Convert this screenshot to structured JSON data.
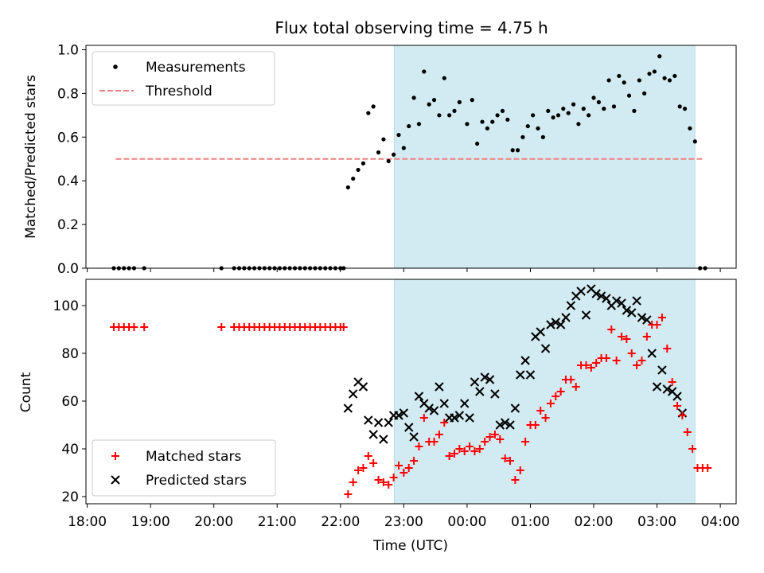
{
  "chart_data": {
    "type": "scatter",
    "title": "Flux total observing time = 4.75 h",
    "xlabel": "Time (UTC)",
    "x_tick_labels": [
      "18:00",
      "19:00",
      "20:00",
      "21:00",
      "22:00",
      "23:00",
      "00:00",
      "01:00",
      "02:00",
      "03:00",
      "04:00"
    ],
    "x_tick_hours": [
      18,
      19,
      20,
      21,
      22,
      23,
      24,
      25,
      26,
      27,
      28
    ],
    "xlim_hours": [
      17.98,
      28.25
    ],
    "shaded_interval_hours": [
      22.85,
      27.6
    ],
    "shade_color": "#add8e6",
    "top": {
      "ylabel": "Matched/Predicted stars",
      "ylim": [
        0,
        1.02
      ],
      "yticks": [
        0.0,
        0.2,
        0.4,
        0.6,
        0.8,
        1.0
      ],
      "y_tick_labels": [
        "0.0",
        "0.2",
        "0.4",
        "0.6",
        "0.8",
        "1.0"
      ],
      "threshold": {
        "name": "Threshold",
        "value": 0.5,
        "x_range_hours": [
          18.45,
          27.72
        ],
        "color": "#f08080"
      },
      "measurements": {
        "name": "Measurements",
        "color": "#000000",
        "points": [
          [
            18.42,
            0
          ],
          [
            18.5,
            0
          ],
          [
            18.58,
            0
          ],
          [
            18.66,
            0
          ],
          [
            18.74,
            0
          ],
          [
            18.9,
            0
          ],
          [
            20.12,
            0
          ],
          [
            20.32,
            0
          ],
          [
            20.4,
            0
          ],
          [
            20.48,
            0
          ],
          [
            20.56,
            0
          ],
          [
            20.64,
            0
          ],
          [
            20.72,
            0
          ],
          [
            20.8,
            0
          ],
          [
            20.88,
            0
          ],
          [
            20.96,
            0
          ],
          [
            21.04,
            0
          ],
          [
            21.12,
            0
          ],
          [
            21.2,
            0
          ],
          [
            21.28,
            0
          ],
          [
            21.36,
            0
          ],
          [
            21.44,
            0
          ],
          [
            21.52,
            0
          ],
          [
            21.6,
            0
          ],
          [
            21.68,
            0
          ],
          [
            21.76,
            0
          ],
          [
            21.84,
            0
          ],
          [
            21.92,
            0
          ],
          [
            22.0,
            0
          ],
          [
            22.05,
            0
          ],
          [
            22.12,
            0.37
          ],
          [
            22.2,
            0.41
          ],
          [
            22.28,
            0.45
          ],
          [
            22.36,
            0.48
          ],
          [
            22.44,
            0.71
          ],
          [
            22.52,
            0.74
          ],
          [
            22.6,
            0.53
          ],
          [
            22.68,
            0.59
          ],
          [
            22.76,
            0.49
          ],
          [
            22.84,
            0.52
          ],
          [
            22.92,
            0.61
          ],
          [
            23.0,
            0.55
          ],
          [
            23.08,
            0.65
          ],
          [
            23.16,
            0.78
          ],
          [
            23.24,
            0.66
          ],
          [
            23.32,
            0.9
          ],
          [
            23.4,
            0.75
          ],
          [
            23.48,
            0.77
          ],
          [
            23.56,
            0.7
          ],
          [
            23.64,
            0.87
          ],
          [
            23.72,
            0.7
          ],
          [
            23.8,
            0.72
          ],
          [
            23.88,
            0.76
          ],
          [
            24.0,
            0.66
          ],
          [
            24.08,
            0.77
          ],
          [
            24.16,
            0.57
          ],
          [
            24.24,
            0.67
          ],
          [
            24.32,
            0.64
          ],
          [
            24.4,
            0.67
          ],
          [
            24.48,
            0.7
          ],
          [
            24.56,
            0.72
          ],
          [
            24.64,
            0.68
          ],
          [
            24.72,
            0.54
          ],
          [
            24.8,
            0.54
          ],
          [
            24.88,
            0.6
          ],
          [
            24.96,
            0.65
          ],
          [
            25.04,
            0.7
          ],
          [
            25.12,
            0.64
          ],
          [
            25.2,
            0.6
          ],
          [
            25.28,
            0.72
          ],
          [
            25.36,
            0.69
          ],
          [
            25.44,
            0.7
          ],
          [
            25.52,
            0.73
          ],
          [
            25.6,
            0.71
          ],
          [
            25.68,
            0.75
          ],
          [
            25.76,
            0.66
          ],
          [
            25.84,
            0.73
          ],
          [
            25.92,
            0.7
          ],
          [
            26.0,
            0.78
          ],
          [
            26.08,
            0.76
          ],
          [
            26.16,
            0.73
          ],
          [
            26.24,
            0.86
          ],
          [
            26.32,
            0.74
          ],
          [
            26.4,
            0.88
          ],
          [
            26.48,
            0.85
          ],
          [
            26.56,
            0.79
          ],
          [
            26.64,
            0.72
          ],
          [
            26.72,
            0.86
          ],
          [
            26.8,
            0.8
          ],
          [
            26.88,
            0.89
          ],
          [
            26.96,
            0.9
          ],
          [
            27.04,
            0.97
          ],
          [
            27.12,
            0.87
          ],
          [
            27.2,
            0.86
          ],
          [
            27.28,
            0.88
          ],
          [
            27.36,
            0.74
          ],
          [
            27.44,
            0.73
          ],
          [
            27.52,
            0.64
          ],
          [
            27.6,
            0.58
          ],
          [
            27.68,
            0
          ],
          [
            27.76,
            0
          ]
        ]
      }
    },
    "bottom": {
      "ylabel": "Count",
      "ylim": [
        17,
        111
      ],
      "yticks": [
        20,
        40,
        60,
        80,
        100
      ],
      "y_tick_labels": [
        "20",
        "40",
        "60",
        "80",
        "100"
      ],
      "matched": {
        "name": "Matched stars",
        "color": "#ff0000",
        "points": [
          [
            18.42,
            91
          ],
          [
            18.5,
            91
          ],
          [
            18.58,
            91
          ],
          [
            18.66,
            91
          ],
          [
            18.74,
            91
          ],
          [
            18.9,
            91
          ],
          [
            20.12,
            91
          ],
          [
            20.32,
            91
          ],
          [
            20.4,
            91
          ],
          [
            20.48,
            91
          ],
          [
            20.56,
            91
          ],
          [
            20.64,
            91
          ],
          [
            20.72,
            91
          ],
          [
            20.8,
            91
          ],
          [
            20.88,
            91
          ],
          [
            20.96,
            91
          ],
          [
            21.04,
            91
          ],
          [
            21.12,
            91
          ],
          [
            21.2,
            91
          ],
          [
            21.28,
            91
          ],
          [
            21.36,
            91
          ],
          [
            21.44,
            91
          ],
          [
            21.52,
            91
          ],
          [
            21.6,
            91
          ],
          [
            21.68,
            91
          ],
          [
            21.76,
            91
          ],
          [
            21.84,
            91
          ],
          [
            21.92,
            91
          ],
          [
            22.0,
            91
          ],
          [
            22.05,
            91
          ],
          [
            22.12,
            21
          ],
          [
            22.2,
            26
          ],
          [
            22.28,
            31
          ],
          [
            22.36,
            32
          ],
          [
            22.44,
            37
          ],
          [
            22.52,
            34
          ],
          [
            22.6,
            27
          ],
          [
            22.68,
            26
          ],
          [
            22.76,
            25
          ],
          [
            22.84,
            28
          ],
          [
            22.92,
            33
          ],
          [
            23.0,
            30
          ],
          [
            23.08,
            32
          ],
          [
            23.16,
            35
          ],
          [
            23.24,
            41
          ],
          [
            23.32,
            53
          ],
          [
            23.4,
            43
          ],
          [
            23.48,
            43
          ],
          [
            23.56,
            46
          ],
          [
            23.64,
            51
          ],
          [
            23.72,
            37
          ],
          [
            23.8,
            38
          ],
          [
            23.88,
            40
          ],
          [
            23.96,
            39
          ],
          [
            24.04,
            41
          ],
          [
            24.12,
            39
          ],
          [
            24.2,
            40
          ],
          [
            24.28,
            43
          ],
          [
            24.36,
            45
          ],
          [
            24.44,
            46
          ],
          [
            24.52,
            44
          ],
          [
            24.6,
            36
          ],
          [
            24.68,
            35
          ],
          [
            24.76,
            27
          ],
          [
            24.84,
            31
          ],
          [
            24.92,
            43
          ],
          [
            25.0,
            50
          ],
          [
            25.08,
            50
          ],
          [
            25.16,
            56
          ],
          [
            25.24,
            53
          ],
          [
            25.32,
            59
          ],
          [
            25.4,
            62
          ],
          [
            25.48,
            64
          ],
          [
            25.56,
            69
          ],
          [
            25.64,
            69
          ],
          [
            25.72,
            66
          ],
          [
            25.8,
            75
          ],
          [
            25.88,
            75
          ],
          [
            25.96,
            74
          ],
          [
            26.04,
            76
          ],
          [
            26.12,
            78
          ],
          [
            26.2,
            78
          ],
          [
            26.28,
            90
          ],
          [
            26.36,
            77
          ],
          [
            26.44,
            87
          ],
          [
            26.52,
            86
          ],
          [
            26.6,
            80
          ],
          [
            26.68,
            75
          ],
          [
            26.76,
            77
          ],
          [
            26.84,
            87
          ],
          [
            26.92,
            92
          ],
          [
            27.0,
            92
          ],
          [
            27.08,
            95
          ],
          [
            27.16,
            82
          ],
          [
            27.24,
            68
          ],
          [
            27.32,
            58
          ],
          [
            27.4,
            54
          ],
          [
            27.48,
            47
          ],
          [
            27.56,
            40
          ],
          [
            27.64,
            32
          ],
          [
            27.72,
            32
          ],
          [
            27.8,
            32
          ]
        ]
      },
      "predicted": {
        "name": "Predicted stars",
        "color": "#000000",
        "points": [
          [
            22.12,
            57
          ],
          [
            22.2,
            63
          ],
          [
            22.28,
            68
          ],
          [
            22.36,
            66
          ],
          [
            22.44,
            52
          ],
          [
            22.52,
            46
          ],
          [
            22.6,
            51
          ],
          [
            22.68,
            44
          ],
          [
            22.76,
            51
          ],
          [
            22.84,
            54
          ],
          [
            22.92,
            54
          ],
          [
            23.0,
            55
          ],
          [
            23.08,
            49
          ],
          [
            23.16,
            45
          ],
          [
            23.24,
            62
          ],
          [
            23.32,
            59
          ],
          [
            23.4,
            57
          ],
          [
            23.48,
            56
          ],
          [
            23.56,
            66
          ],
          [
            23.64,
            59
          ],
          [
            23.72,
            53
          ],
          [
            23.8,
            53
          ],
          [
            23.88,
            54
          ],
          [
            23.96,
            59
          ],
          [
            24.04,
            53
          ],
          [
            24.12,
            68
          ],
          [
            24.2,
            64
          ],
          [
            24.28,
            70
          ],
          [
            24.36,
            69
          ],
          [
            24.44,
            63
          ],
          [
            24.52,
            50
          ],
          [
            24.6,
            51
          ],
          [
            24.68,
            50
          ],
          [
            24.76,
            57
          ],
          [
            24.84,
            71
          ],
          [
            24.92,
            77
          ],
          [
            25.0,
            71
          ],
          [
            25.08,
            87
          ],
          [
            25.16,
            89
          ],
          [
            25.24,
            82
          ],
          [
            25.32,
            92
          ],
          [
            25.4,
            93
          ],
          [
            25.48,
            92
          ],
          [
            25.56,
            95
          ],
          [
            25.64,
            100
          ],
          [
            25.72,
            104
          ],
          [
            25.8,
            106
          ],
          [
            25.88,
            96
          ],
          [
            25.96,
            107
          ],
          [
            26.04,
            105
          ],
          [
            26.12,
            104
          ],
          [
            26.2,
            103
          ],
          [
            26.28,
            100
          ],
          [
            26.36,
            102
          ],
          [
            26.44,
            101
          ],
          [
            26.52,
            98
          ],
          [
            26.6,
            97
          ],
          [
            26.68,
            102
          ],
          [
            26.76,
            95
          ],
          [
            26.84,
            94
          ],
          [
            26.92,
            80
          ],
          [
            27.0,
            66
          ],
          [
            27.08,
            73
          ],
          [
            27.16,
            65
          ],
          [
            27.24,
            64
          ],
          [
            27.32,
            62
          ],
          [
            27.4,
            55
          ]
        ]
      }
    }
  }
}
